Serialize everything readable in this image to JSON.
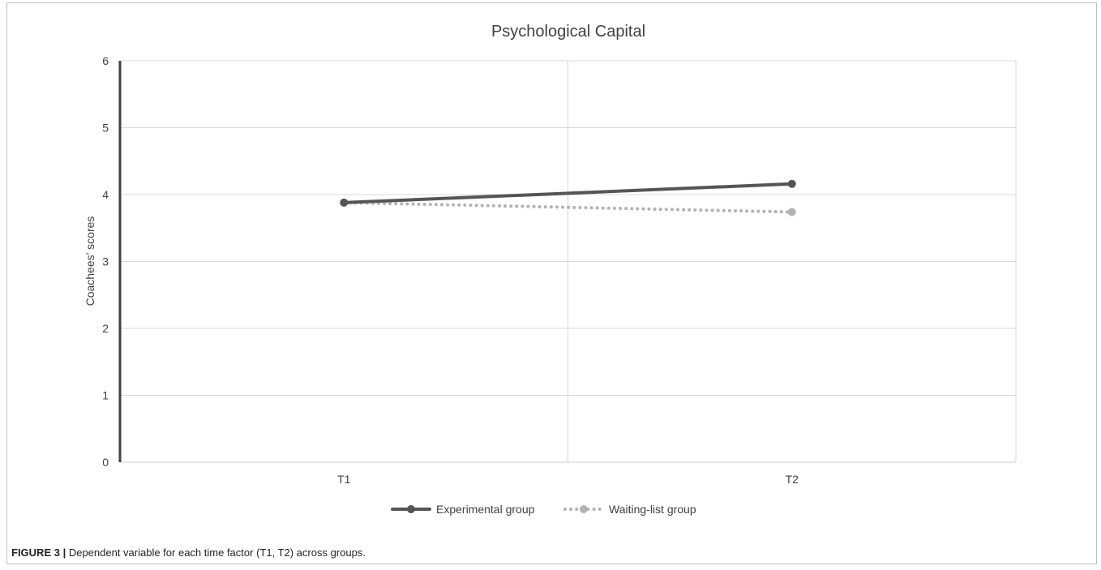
{
  "caption": {
    "label": "FIGURE 3 |",
    "text": "Dependent variable for each time factor (T1, T2) across groups."
  },
  "chart_data": {
    "type": "line",
    "title": "Psychological Capital",
    "xlabel": "",
    "ylabel": "Coachees' scores",
    "categories": [
      "T1",
      "T2"
    ],
    "ylim": [
      0,
      6
    ],
    "yticks": [
      0,
      1,
      2,
      3,
      4,
      5,
      6
    ],
    "grid": true,
    "legend_position": "bottom",
    "series": [
      {
        "name": "Experimental group",
        "values": [
          3.88,
          4.16
        ],
        "color": "#555555",
        "style": "solid"
      },
      {
        "name": "Waiting-list group",
        "values": [
          3.88,
          3.74
        ],
        "color": "#b3b3b3",
        "style": "dotted"
      }
    ]
  }
}
